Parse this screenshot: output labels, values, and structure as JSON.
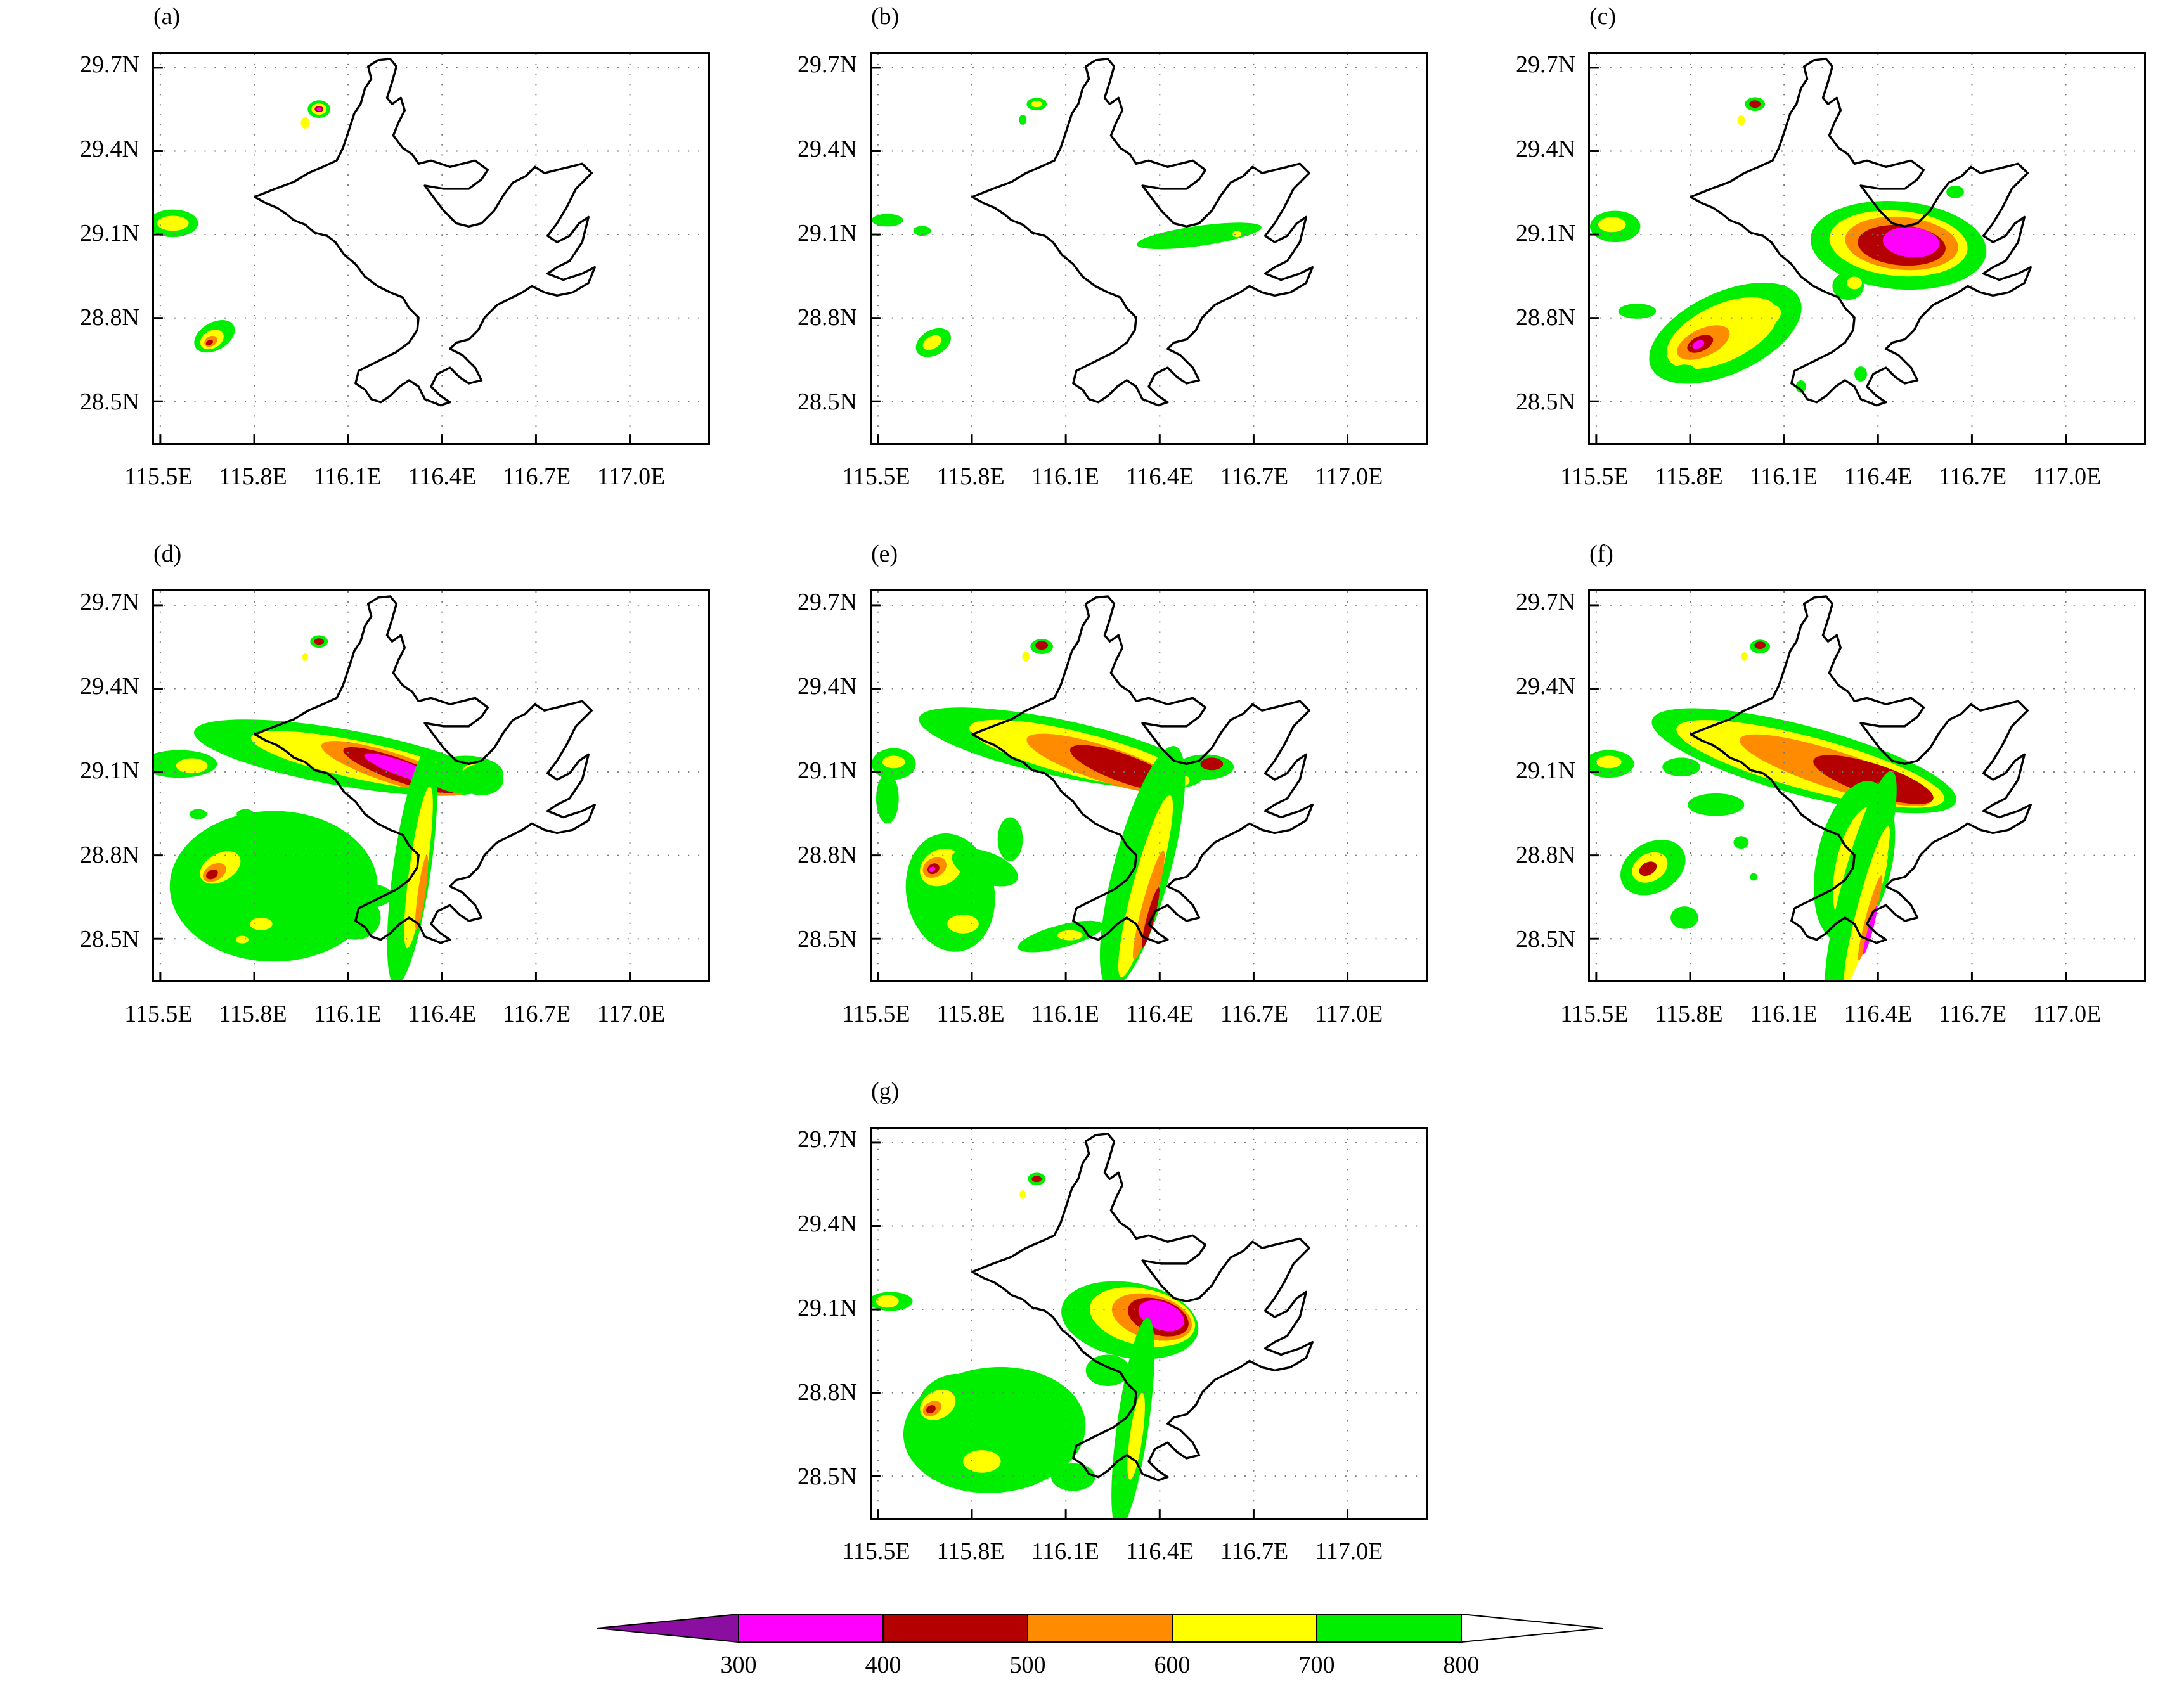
{
  "panels": [
    {
      "id": "a",
      "label": "(a)"
    },
    {
      "id": "b",
      "label": "(b)"
    },
    {
      "id": "c",
      "label": "(c)"
    },
    {
      "id": "d",
      "label": "(d)"
    },
    {
      "id": "e",
      "label": "(e)"
    },
    {
      "id": "f",
      "label": "(f)"
    },
    {
      "id": "g",
      "label": "(g)"
    }
  ],
  "axes": {
    "lat_ticks": [
      "29.7N",
      "29.4N",
      "29.1N",
      "28.8N",
      "28.5N"
    ],
    "lon_ticks": [
      "115.5E",
      "115.8E",
      "116.1E",
      "116.4E",
      "116.7E",
      "117.0E"
    ],
    "lat_range": [
      28.35,
      29.75
    ],
    "lon_range": [
      115.48,
      117.25
    ],
    "grid": "dotted"
  },
  "colorbar": {
    "levels": [
      "300",
      "400",
      "500",
      "600",
      "700",
      "800"
    ],
    "colors": [
      "#8a0fa0",
      "#ff00ff",
      "#b40000",
      "#ff8c00",
      "#ffff00",
      "#00ee00",
      "#ffffff"
    ],
    "extend": "both"
  },
  "map_colors": {
    "c700": "#00ee00",
    "c600": "#ffff00",
    "c500": "#ff8c00",
    "c400": "#b40000",
    "c300": "#ff00ff",
    "coast": "#000000"
  }
}
